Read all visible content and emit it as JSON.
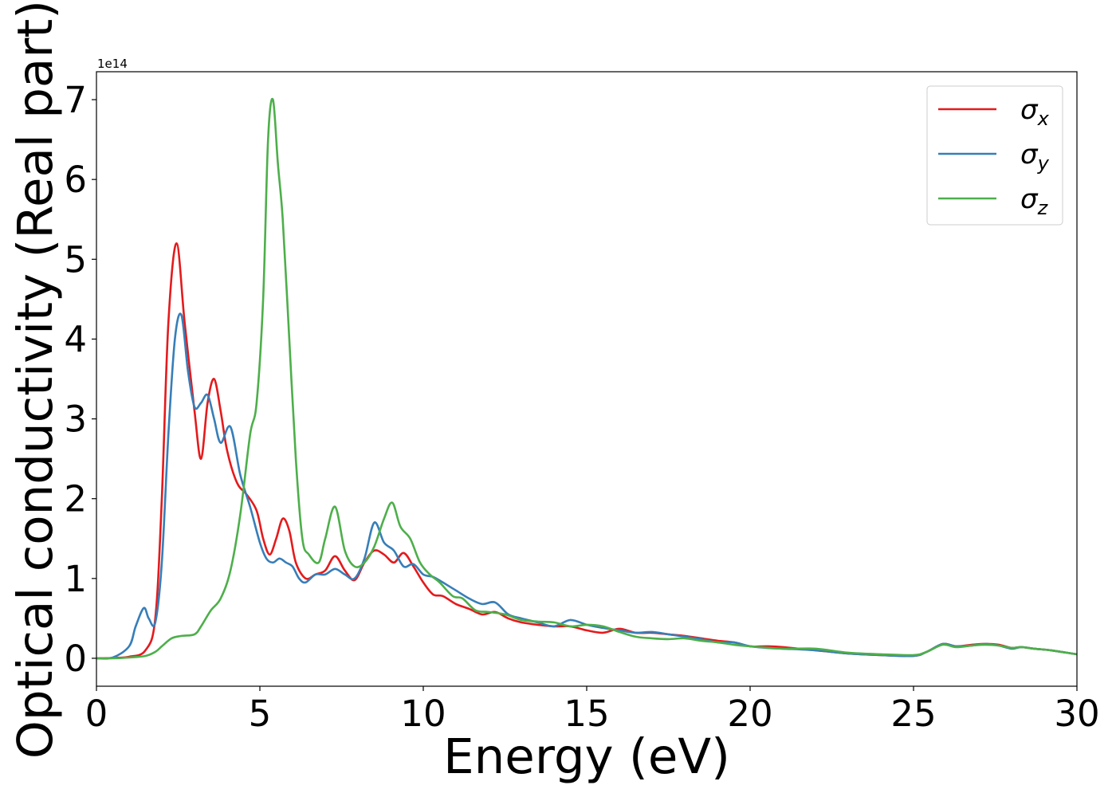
{
  "chart_data": {
    "type": "line",
    "xlabel": "Energy (eV)",
    "ylabel": "Optical conductivity (Real part)",
    "offset_text": "1e14",
    "xlim": [
      0,
      30
    ],
    "ylim": [
      -0.35,
      7.35
    ],
    "xticks": [
      0,
      5,
      10,
      15,
      20,
      25,
      30
    ],
    "yticks": [
      0,
      1,
      2,
      3,
      4,
      5,
      6,
      7
    ],
    "grid": false,
    "legend_position": "top-right",
    "series": [
      {
        "name": "σx",
        "symbol": "σ",
        "subscript": "x",
        "color": "#e41a1c",
        "x": [
          0,
          0.5,
          1.0,
          1.5,
          1.8,
          2.0,
          2.2,
          2.45,
          2.7,
          3.0,
          3.2,
          3.4,
          3.6,
          3.8,
          4.0,
          4.3,
          4.6,
          4.9,
          5.1,
          5.3,
          5.5,
          5.7,
          5.9,
          6.1,
          6.4,
          6.7,
          7.0,
          7.3,
          7.6,
          7.9,
          8.2,
          8.5,
          8.8,
          9.1,
          9.4,
          9.7,
          10.0,
          10.3,
          10.6,
          11.0,
          11.4,
          11.8,
          12.2,
          12.6,
          13.0,
          13.5,
          14.0,
          14.5,
          15.0,
          15.5,
          16.0,
          16.5,
          17.0,
          17.5,
          18.0,
          18.5,
          19.0,
          19.5,
          20.0,
          20.5,
          21.0,
          22.0,
          23.0,
          24.0,
          25.0,
          25.4,
          25.9,
          26.3,
          26.8,
          27.2,
          27.6,
          28.0,
          28.3,
          28.7,
          29.2,
          30.0
        ],
        "y": [
          0,
          0.005,
          0.02,
          0.1,
          0.5,
          2.0,
          4.2,
          5.2,
          4.2,
          3.1,
          2.5,
          3.2,
          3.5,
          3.1,
          2.6,
          2.2,
          2.05,
          1.85,
          1.5,
          1.3,
          1.5,
          1.75,
          1.6,
          1.2,
          1.0,
          1.05,
          1.1,
          1.28,
          1.1,
          0.98,
          1.2,
          1.35,
          1.3,
          1.2,
          1.32,
          1.15,
          0.95,
          0.8,
          0.78,
          0.68,
          0.62,
          0.55,
          0.58,
          0.5,
          0.45,
          0.42,
          0.4,
          0.4,
          0.35,
          0.32,
          0.37,
          0.32,
          0.32,
          0.3,
          0.28,
          0.25,
          0.22,
          0.2,
          0.15,
          0.15,
          0.14,
          0.1,
          0.06,
          0.04,
          0.03,
          0.08,
          0.18,
          0.15,
          0.17,
          0.18,
          0.17,
          0.13,
          0.14,
          0.12,
          0.1,
          0.05
        ]
      },
      {
        "name": "σy",
        "symbol": "σ",
        "subscript": "y",
        "color": "#377eb8",
        "x": [
          0,
          0.5,
          1.0,
          1.2,
          1.45,
          1.6,
          1.8,
          2.0,
          2.2,
          2.4,
          2.6,
          2.8,
          3.0,
          3.2,
          3.4,
          3.6,
          3.8,
          4.1,
          4.4,
          4.7,
          5.0,
          5.2,
          5.4,
          5.6,
          5.8,
          6.0,
          6.2,
          6.4,
          6.7,
          7.0,
          7.3,
          7.6,
          7.9,
          8.2,
          8.5,
          8.8,
          9.1,
          9.4,
          9.7,
          10.0,
          10.3,
          10.6,
          11.0,
          11.4,
          11.8,
          12.2,
          12.6,
          13.0,
          13.5,
          14.0,
          14.5,
          15.0,
          15.5,
          16.0,
          16.5,
          17.0,
          17.5,
          18.0,
          18.5,
          19.0,
          19.5,
          20.0,
          20.5,
          21.0,
          22.0,
          23.0,
          24.0,
          25.0,
          25.4,
          25.9,
          26.3,
          26.8,
          27.2,
          27.6,
          28.0,
          28.3,
          28.7,
          29.2,
          30.0
        ],
        "y": [
          0,
          0.01,
          0.15,
          0.4,
          0.63,
          0.5,
          0.45,
          1.2,
          2.8,
          4.0,
          4.3,
          3.6,
          3.15,
          3.2,
          3.3,
          3.0,
          2.7,
          2.9,
          2.3,
          1.9,
          1.45,
          1.25,
          1.2,
          1.25,
          1.2,
          1.15,
          1.0,
          0.95,
          1.05,
          1.05,
          1.12,
          1.05,
          1.0,
          1.25,
          1.7,
          1.45,
          1.35,
          1.15,
          1.18,
          1.05,
          1.02,
          0.95,
          0.85,
          0.75,
          0.68,
          0.7,
          0.55,
          0.5,
          0.45,
          0.4,
          0.48,
          0.42,
          0.38,
          0.35,
          0.32,
          0.33,
          0.3,
          0.27,
          0.24,
          0.2,
          0.2,
          0.15,
          0.13,
          0.12,
          0.1,
          0.06,
          0.04,
          0.03,
          0.08,
          0.18,
          0.15,
          0.16,
          0.18,
          0.16,
          0.12,
          0.14,
          0.12,
          0.1,
          0.05
        ]
      },
      {
        "name": "σz",
        "symbol": "σ",
        "subscript": "z",
        "color": "#4daf4a",
        "x": [
          0,
          0.5,
          1.0,
          1.5,
          1.8,
          2.0,
          2.3,
          2.6,
          3.0,
          3.2,
          3.5,
          3.8,
          4.1,
          4.4,
          4.7,
          4.9,
          5.1,
          5.25,
          5.4,
          5.55,
          5.7,
          5.9,
          6.1,
          6.3,
          6.5,
          6.8,
          7.0,
          7.3,
          7.6,
          7.9,
          8.2,
          8.5,
          8.8,
          9.05,
          9.3,
          9.6,
          9.9,
          10.2,
          10.5,
          10.9,
          11.2,
          11.6,
          12.0,
          12.5,
          13.0,
          13.5,
          14.0,
          14.5,
          15.0,
          15.5,
          16.0,
          16.5,
          17.0,
          17.5,
          18.0,
          18.5,
          19.0,
          19.5,
          20.0,
          21.0,
          22.0,
          23.0,
          24.0,
          25.0,
          25.4,
          25.9,
          26.3,
          26.8,
          27.2,
          27.6,
          28.0,
          28.3,
          28.7,
          29.2,
          30.0
        ],
        "y": [
          0,
          0.0,
          0.01,
          0.03,
          0.08,
          0.15,
          0.25,
          0.28,
          0.3,
          0.4,
          0.6,
          0.75,
          1.1,
          1.8,
          2.8,
          3.2,
          4.5,
          6.5,
          7.0,
          6.2,
          5.5,
          4.0,
          2.5,
          1.5,
          1.3,
          1.2,
          1.5,
          1.9,
          1.35,
          1.15,
          1.2,
          1.4,
          1.75,
          1.95,
          1.65,
          1.5,
          1.2,
          1.05,
          0.95,
          0.78,
          0.75,
          0.6,
          0.58,
          0.55,
          0.48,
          0.46,
          0.45,
          0.4,
          0.42,
          0.4,
          0.33,
          0.27,
          0.25,
          0.24,
          0.25,
          0.22,
          0.2,
          0.17,
          0.15,
          0.12,
          0.12,
          0.07,
          0.05,
          0.04,
          0.08,
          0.17,
          0.14,
          0.16,
          0.17,
          0.16,
          0.13,
          0.14,
          0.12,
          0.1,
          0.05
        ]
      }
    ]
  }
}
